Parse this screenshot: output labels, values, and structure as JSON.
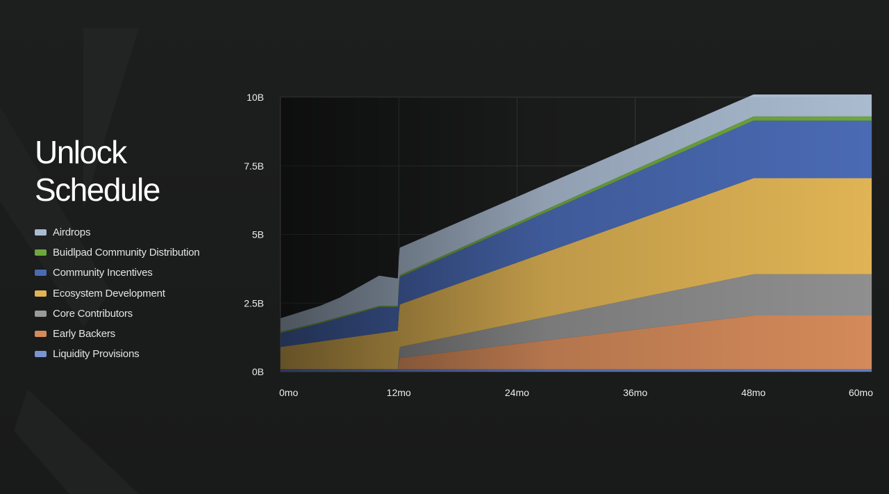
{
  "page": {
    "title_line1": "Unlock",
    "title_line2": "Schedule",
    "background": "#1b1c1c"
  },
  "legend": [
    {
      "label": "Airdrops",
      "color": "#aabbd0"
    },
    {
      "label": "Buidlpad Community Distribution",
      "color": "#6ea83c"
    },
    {
      "label": "Community Incentives",
      "color": "#4a6ab4"
    },
    {
      "label": "Ecosystem Development",
      "color": "#e0b455"
    },
    {
      "label": "Core Contributors",
      "color": "#9a9a9a"
    },
    {
      "label": "Early Backers",
      "color": "#d48a5a"
    },
    {
      "label": "Liquidity Provisions",
      "color": "#7a94d2"
    }
  ],
  "chart_data": {
    "type": "area",
    "stacked": true,
    "x_unit": "months",
    "x": [
      0,
      4,
      6,
      8,
      10,
      11.9,
      12,
      12.1,
      48,
      60
    ],
    "xticks": [
      0,
      12,
      24,
      36,
      48,
      60
    ],
    "xtick_labels": [
      "0mo",
      "12mo",
      "24mo",
      "36mo",
      "48mo",
      "60mo"
    ],
    "yticks": [
      0,
      2.5,
      5,
      7.5,
      10
    ],
    "ytick_labels": [
      "0B",
      "2.5B",
      "5B",
      "7.5B",
      "10B"
    ],
    "xlim": [
      0,
      60
    ],
    "ylim": [
      0,
      10
    ],
    "y_unit": "B",
    "grid": true,
    "series": [
      {
        "name": "Liquidity Provisions",
        "color": "#5f7cc4",
        "values": [
          0.1,
          0.1,
          0.1,
          0.1,
          0.1,
          0.1,
          0.1,
          0.1,
          0.1,
          0.1
        ]
      },
      {
        "name": "Early Backers",
        "color": "#d48a5a",
        "values": [
          0,
          0,
          0,
          0,
          0,
          0,
          0.2,
          0.4,
          1.95,
          1.95
        ]
      },
      {
        "name": "Core Contributors",
        "color": "#8f8f8f",
        "values": [
          0,
          0,
          0,
          0,
          0,
          0,
          0.3,
          0.4,
          1.5,
          1.5
        ]
      },
      {
        "name": "Ecosystem Development",
        "color": "#e0b455",
        "values": [
          0.8,
          1.0,
          1.1,
          1.2,
          1.3,
          1.4,
          1.5,
          1.55,
          3.5,
          3.5
        ]
      },
      {
        "name": "Community Incentives",
        "color": "#4a6ab4",
        "values": [
          0.5,
          0.65,
          0.75,
          0.85,
          0.95,
          0.85,
          0.95,
          1.0,
          2.1,
          2.1
        ]
      },
      {
        "name": "Buidlpad Community Distribution",
        "color": "#6ea83c",
        "values": [
          0.05,
          0.05,
          0.05,
          0.05,
          0.05,
          0.05,
          0.07,
          0.07,
          0.15,
          0.15
        ]
      },
      {
        "name": "Airdrops",
        "color": "#aabbd0",
        "values": [
          0.5,
          0.6,
          0.7,
          0.9,
          1.1,
          1.0,
          1.0,
          1.0,
          0.8,
          0.8
        ]
      }
    ]
  }
}
